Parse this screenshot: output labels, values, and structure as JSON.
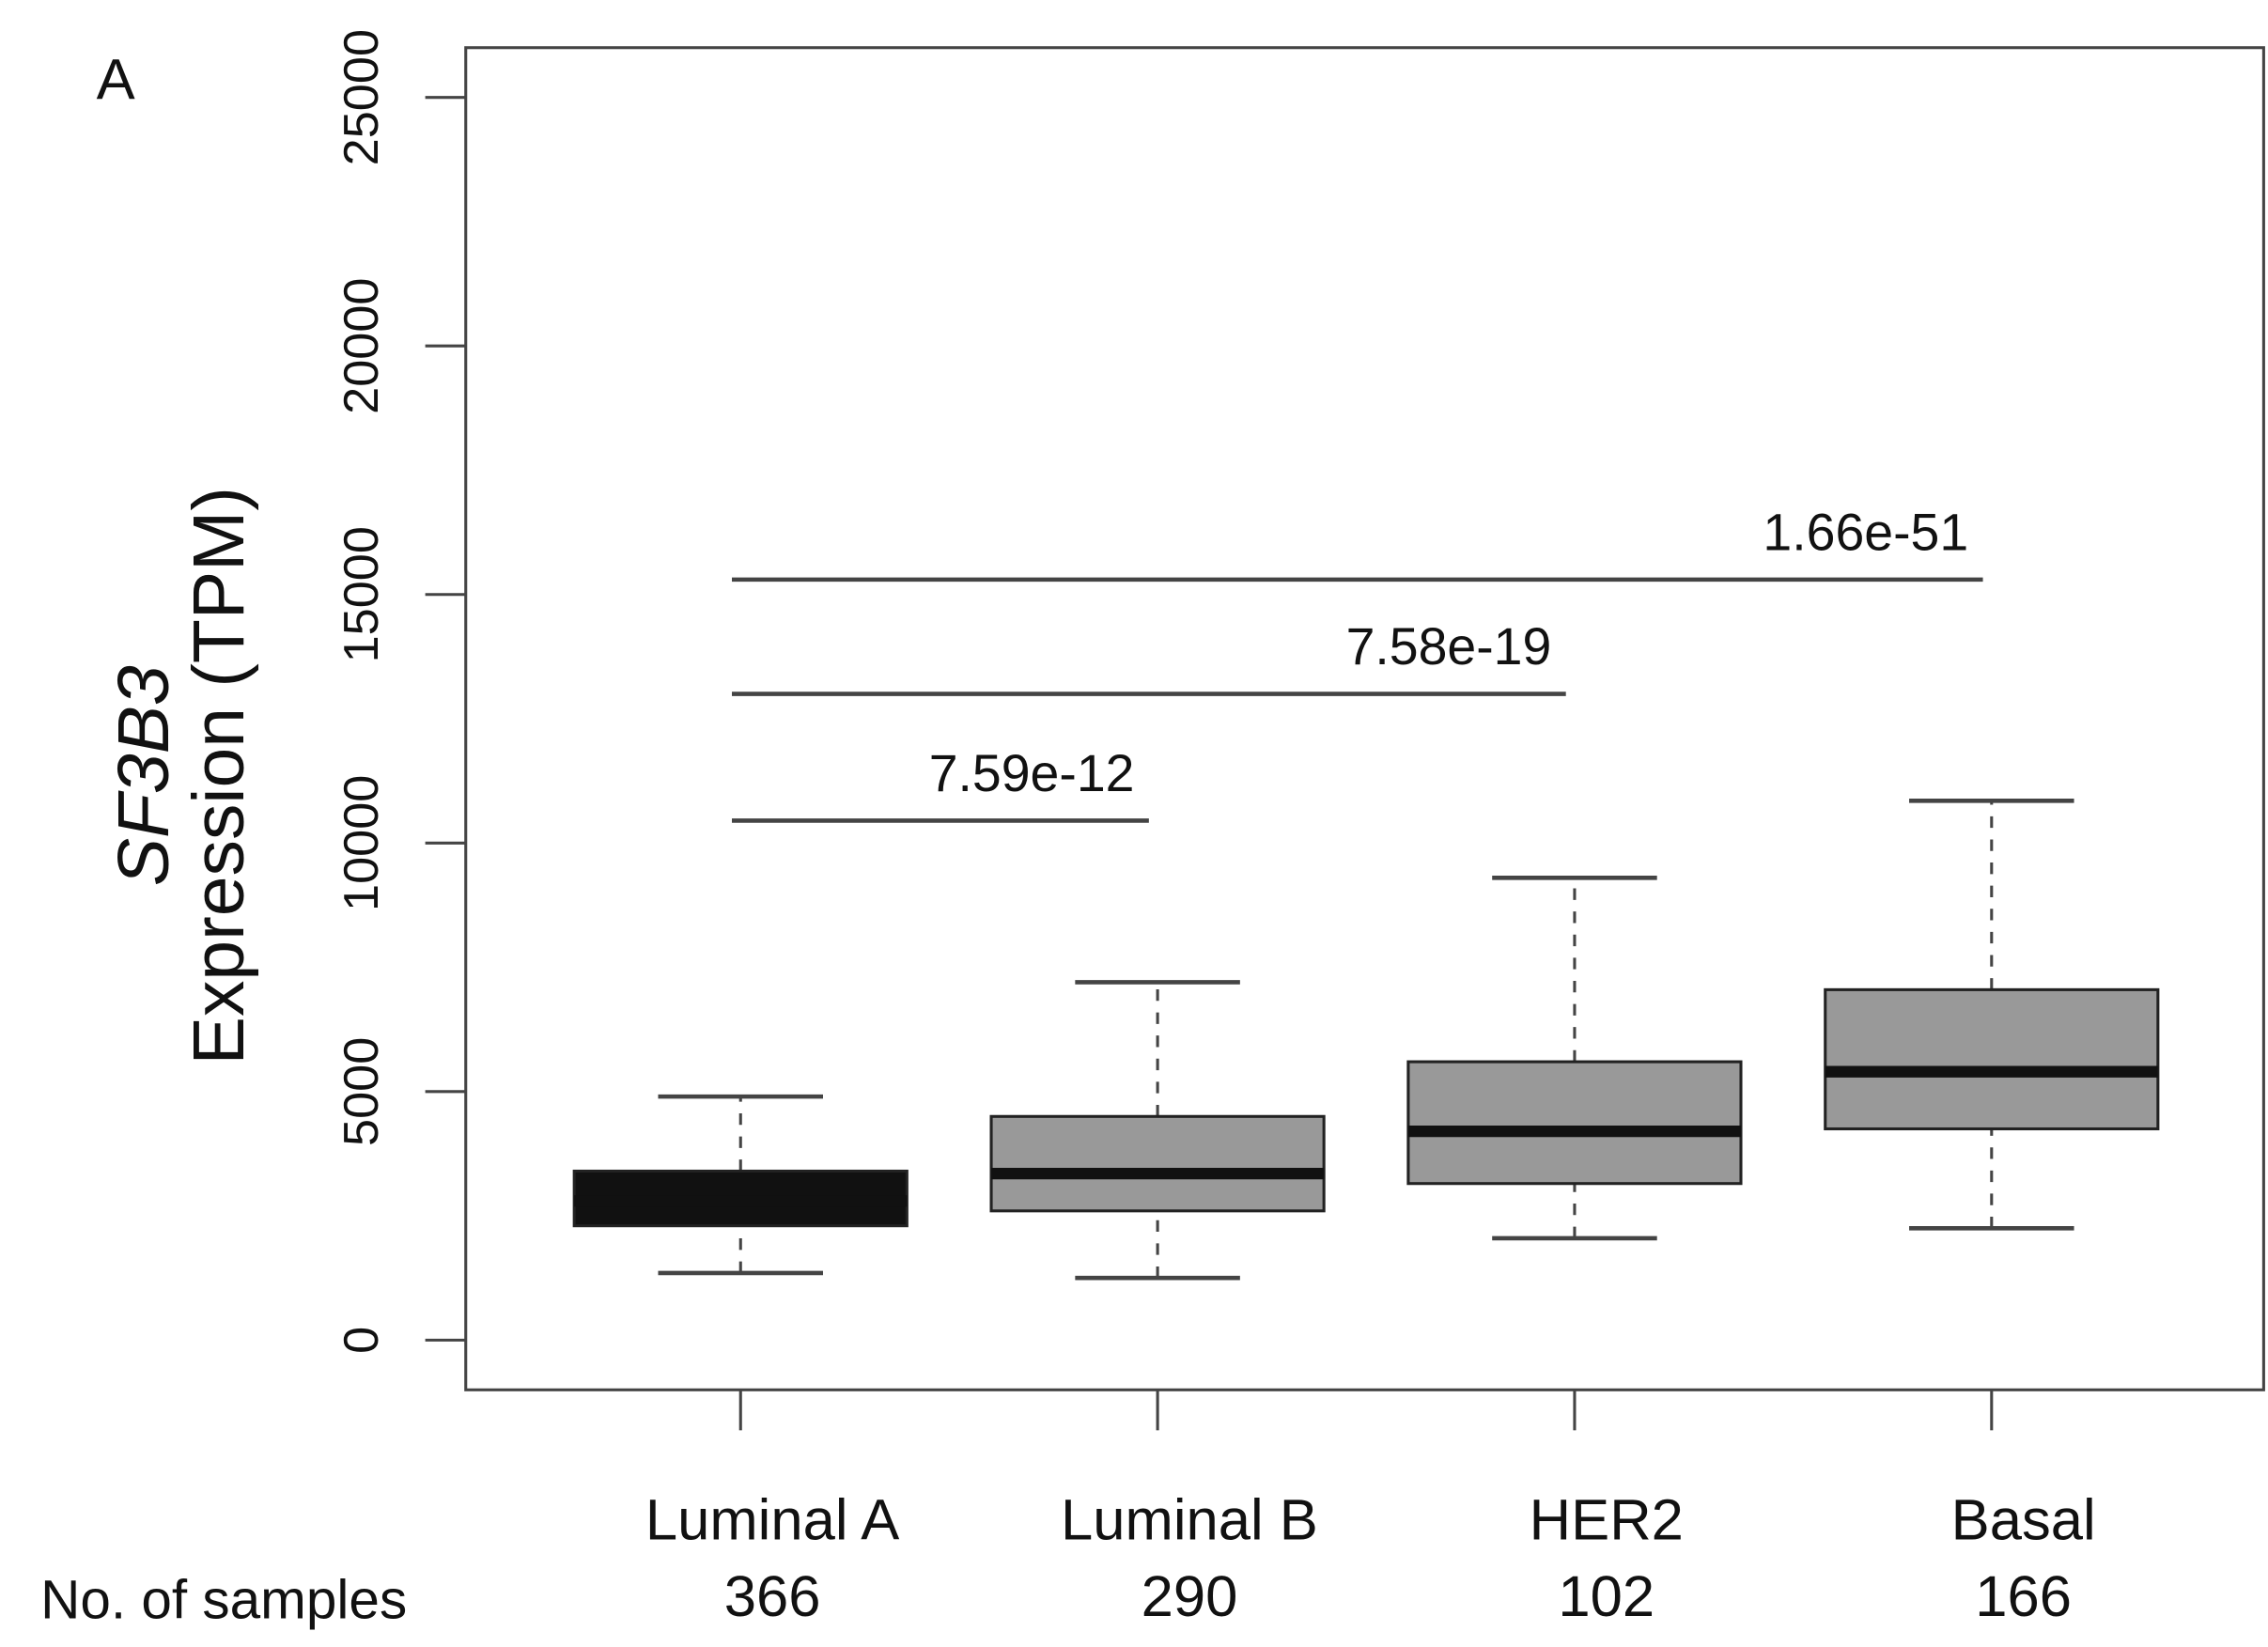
{
  "chart_data": {
    "type": "box",
    "panel": "A",
    "y_label_gene": "SF3B3",
    "y_label": "Expression (TPM)",
    "categories": [
      "Luminal A",
      "Luminal B",
      "HER2",
      "Basal"
    ],
    "samples_label": "No. of samples",
    "samples": [
      "366",
      "290",
      "102",
      "166"
    ],
    "boxes": [
      {
        "min": 1350,
        "q1": 2300,
        "median": 2800,
        "q3": 3400,
        "max": 4900
      },
      {
        "min": 1250,
        "q1": 2600,
        "median": 3350,
        "q3": 4500,
        "max": 7200
      },
      {
        "min": 2050,
        "q1": 3150,
        "median": 4200,
        "q3": 5600,
        "max": 9300
      },
      {
        "min": 2250,
        "q1": 4250,
        "median": 5400,
        "q3": 7050,
        "max": 10850
      }
    ],
    "colors": [
      "#111111",
      "#999999",
      "#999999",
      "#999999"
    ],
    "ylim": [
      -1000,
      26000
    ],
    "yticks": [
      0,
      5000,
      10000,
      15000,
      20000,
      25000
    ],
    "comparisons": [
      {
        "from": "Luminal A",
        "to": "Luminal B",
        "y": 10450,
        "label": "7.59e-12"
      },
      {
        "from": "Luminal A",
        "to": "HER2",
        "y": 13000,
        "label": "7.58e-19"
      },
      {
        "from": "Luminal A",
        "to": "Basal",
        "y": 15300,
        "label": "1.66e-51"
      }
    ]
  }
}
